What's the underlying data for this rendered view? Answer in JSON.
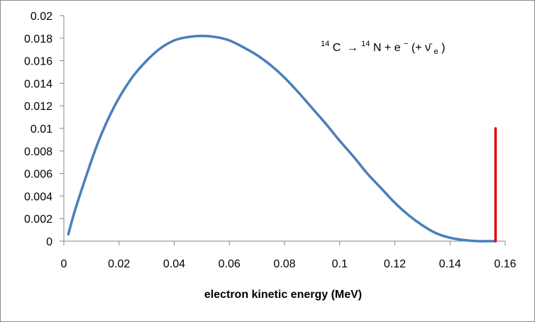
{
  "chart_data": {
    "type": "line",
    "title": "",
    "xlabel": "electron kinetic energy (MeV)",
    "ylabel": "",
    "xlim": [
      0,
      0.16
    ],
    "ylim": [
      0,
      0.02
    ],
    "x_ticks": [
      "0",
      "0.02",
      "0.04",
      "0.06",
      "0.08",
      "0.1",
      "0.12",
      "0.14",
      "0.16"
    ],
    "y_ticks": [
      "0",
      "0.002",
      "0.004",
      "0.006",
      "0.008",
      "0.01",
      "0.012",
      "0.014",
      "0.016",
      "0.018",
      "0.02"
    ],
    "grid": false,
    "legend": "none",
    "annotation": {
      "c_mass": "14",
      "c_symbol": "C",
      "arrow": "→",
      "n_mass": "14",
      "n_symbol": "N",
      "plus_electron": " + e",
      "electron_charge": "−",
      "antineutrino_open": " (+ ν̄",
      "antineutrino_sub": "e",
      "close": ")"
    },
    "series": [
      {
        "color": "#4a7ebb",
        "x": [
          0.0016,
          0.004,
          0.008,
          0.012,
          0.016,
          0.02,
          0.025,
          0.03,
          0.035,
          0.04,
          0.045,
          0.05,
          0.055,
          0.06,
          0.065,
          0.07,
          0.075,
          0.08,
          0.085,
          0.09,
          0.095,
          0.1,
          0.105,
          0.11,
          0.115,
          0.12,
          0.125,
          0.13,
          0.135,
          0.14,
          0.145,
          0.15,
          0.154,
          0.1565
        ],
        "y": [
          0.0006,
          0.0027,
          0.0057,
          0.0085,
          0.0108,
          0.0127,
          0.0146,
          0.016,
          0.0171,
          0.0178,
          0.0181,
          0.0182,
          0.0181,
          0.0178,
          0.0172,
          0.0165,
          0.0156,
          0.0145,
          0.0132,
          0.0118,
          0.0104,
          0.0089,
          0.0075,
          0.006,
          0.0047,
          0.0034,
          0.0023,
          0.0014,
          0.0007,
          0.0003,
          0.0001,
          0.0,
          0.0,
          0.0
        ]
      },
      {
        "color": "#e00000",
        "x": [
          0.1565,
          0.1565
        ],
        "y": [
          0,
          0.01
        ]
      }
    ]
  }
}
